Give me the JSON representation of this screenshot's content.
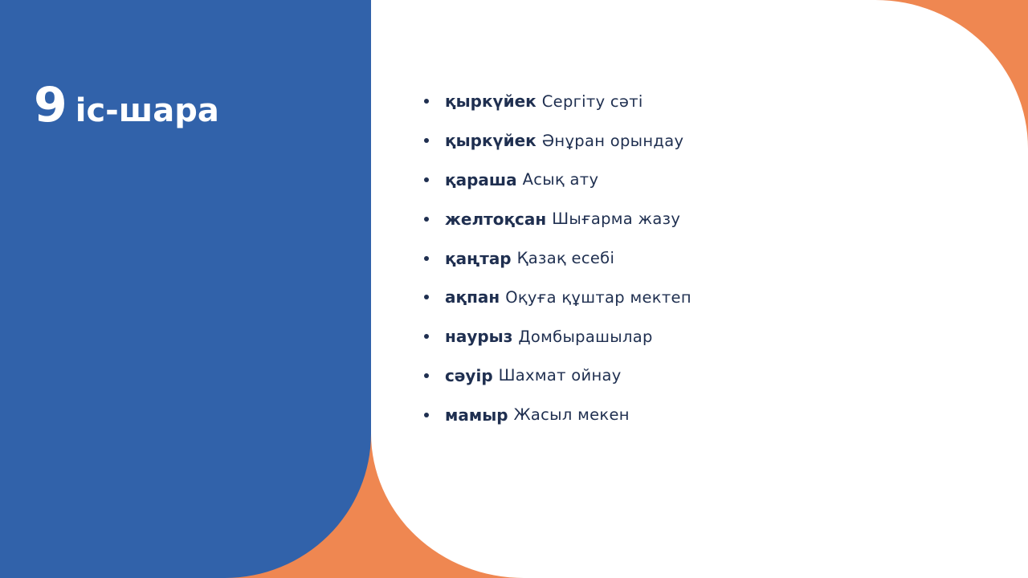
{
  "colors": {
    "blue": "#3162aa",
    "orange": "#ef8751",
    "text": "#1f2f50",
    "white": "#ffffff"
  },
  "title": {
    "number": "9",
    "text": "іс-шара"
  },
  "items": [
    {
      "month": "қыркүйек",
      "event": "Сергіту сәті"
    },
    {
      "month": "қыркүйек",
      "event": "Әнұран орындау"
    },
    {
      "month": "қараша",
      "event": "Асық ату"
    },
    {
      "month": "желтоқсан",
      "event": "Шығарма жазу"
    },
    {
      "month": "қаңтар",
      "event": "Қазақ есебі"
    },
    {
      "month": "ақпан",
      "event": "Оқуға құштар мектеп"
    },
    {
      "month": "наурыз",
      "event": "Домбырашылар"
    },
    {
      "month": "сәуір",
      "event": "Шахмат ойнау"
    },
    {
      "month": "мамыр",
      "event": "Жасыл мекен"
    }
  ]
}
